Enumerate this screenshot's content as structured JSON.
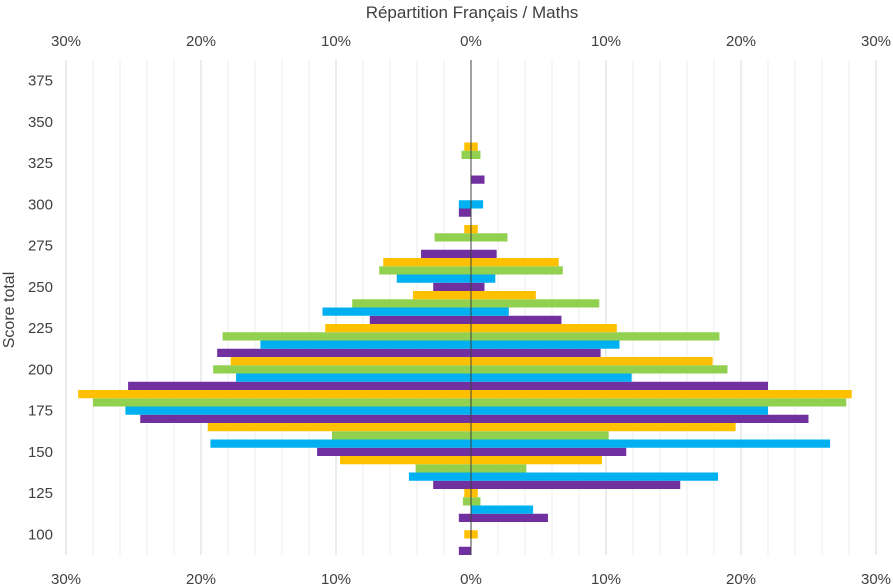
{
  "chart_data": {
    "type": "bar",
    "orientation": "horizontal",
    "title": "Répartition Français / Maths",
    "xlabel": "",
    "ylabel": "Score total",
    "xlim": [
      -0.3,
      0.3
    ],
    "ylim": [
      87.5,
      387.5
    ],
    "grid": true,
    "legend": "none",
    "x_tick_labels": [
      "30%",
      "20%",
      "10%",
      "0%",
      "10%",
      "20%",
      "30%"
    ],
    "y_tick_labels": [
      "100",
      "125",
      "150",
      "175",
      "200",
      "225",
      "250",
      "275",
      "300",
      "325",
      "350",
      "375"
    ],
    "series_colors": [
      "#7030A0",
      "#00B0F0",
      "#92D050",
      "#FFC000"
    ],
    "bars": [
      {
        "score": 90,
        "left": 0.009,
        "right": 0,
        "color": "#7030A0"
      },
      {
        "score": 100,
        "left": 0.005,
        "right": 0.005,
        "color": "#FFC000"
      },
      {
        "score": 110,
        "left": 0.009,
        "right": 0.057,
        "color": "#7030A0"
      },
      {
        "score": 115,
        "left": 0,
        "right": 0.046,
        "color": "#00B0F0"
      },
      {
        "score": 120,
        "left": 0.006,
        "right": 0.007,
        "color": "#92D050"
      },
      {
        "score": 125,
        "left": 0.005,
        "right": 0.005,
        "color": "#FFC000"
      },
      {
        "score": 130,
        "left": 0.028,
        "right": 0.155,
        "color": "#7030A0"
      },
      {
        "score": 135,
        "left": 0.046,
        "right": 0.183,
        "color": "#00B0F0"
      },
      {
        "score": 140,
        "left": 0.041,
        "right": 0.041,
        "color": "#92D050"
      },
      {
        "score": 145,
        "left": 0.097,
        "right": 0.097,
        "color": "#FFC000"
      },
      {
        "score": 150,
        "left": 0.114,
        "right": 0.115,
        "color": "#7030A0"
      },
      {
        "score": 155,
        "left": 0.193,
        "right": 0.266,
        "color": "#00B0F0"
      },
      {
        "score": 160,
        "left": 0.103,
        "right": 0.102,
        "color": "#92D050"
      },
      {
        "score": 165,
        "left": 0.195,
        "right": 0.196,
        "color": "#FFC000"
      },
      {
        "score": 170,
        "left": 0.245,
        "right": 0.25,
        "color": "#7030A0"
      },
      {
        "score": 175,
        "left": 0.256,
        "right": 0.22,
        "color": "#00B0F0"
      },
      {
        "score": 180,
        "left": 0.28,
        "right": 0.278,
        "color": "#92D050"
      },
      {
        "score": 185,
        "left": 0.291,
        "right": 0.282,
        "color": "#FFC000"
      },
      {
        "score": 190,
        "left": 0.254,
        "right": 0.22,
        "color": "#7030A0"
      },
      {
        "score": 195,
        "left": 0.174,
        "right": 0.119,
        "color": "#00B0F0"
      },
      {
        "score": 200,
        "left": 0.191,
        "right": 0.19,
        "color": "#92D050"
      },
      {
        "score": 205,
        "left": 0.178,
        "right": 0.179,
        "color": "#FFC000"
      },
      {
        "score": 210,
        "left": 0.188,
        "right": 0.096,
        "color": "#7030A0"
      },
      {
        "score": 215,
        "left": 0.156,
        "right": 0.11,
        "color": "#00B0F0"
      },
      {
        "score": 220,
        "left": 0.184,
        "right": 0.184,
        "color": "#92D050"
      },
      {
        "score": 225,
        "left": 0.108,
        "right": 0.108,
        "color": "#FFC000"
      },
      {
        "score": 230,
        "left": 0.075,
        "right": 0.067,
        "color": "#7030A0"
      },
      {
        "score": 235,
        "left": 0.11,
        "right": 0.028,
        "color": "#00B0F0"
      },
      {
        "score": 240,
        "left": 0.088,
        "right": 0.095,
        "color": "#92D050"
      },
      {
        "score": 245,
        "left": 0.043,
        "right": 0.048,
        "color": "#FFC000"
      },
      {
        "score": 250,
        "left": 0.028,
        "right": 0.01,
        "color": "#7030A0"
      },
      {
        "score": 255,
        "left": 0.055,
        "right": 0.018,
        "color": "#00B0F0"
      },
      {
        "score": 260,
        "left": 0.068,
        "right": 0.068,
        "color": "#92D050"
      },
      {
        "score": 265,
        "left": 0.065,
        "right": 0.065,
        "color": "#FFC000"
      },
      {
        "score": 270,
        "left": 0.037,
        "right": 0.019,
        "color": "#7030A0"
      },
      {
        "score": 280,
        "left": 0.027,
        "right": 0.027,
        "color": "#92D050"
      },
      {
        "score": 285,
        "left": 0.005,
        "right": 0.005,
        "color": "#FFC000"
      },
      {
        "score": 295,
        "left": 0.009,
        "right": 0,
        "color": "#7030A0"
      },
      {
        "score": 300,
        "left": 0.009,
        "right": 0.009,
        "color": "#00B0F0"
      },
      {
        "score": 315,
        "left": 0,
        "right": 0.01,
        "color": "#7030A0"
      },
      {
        "score": 330,
        "left": 0.007,
        "right": 0.007,
        "color": "#92D050"
      },
      {
        "score": 335,
        "left": 0.005,
        "right": 0.005,
        "color": "#FFC000"
      }
    ]
  }
}
